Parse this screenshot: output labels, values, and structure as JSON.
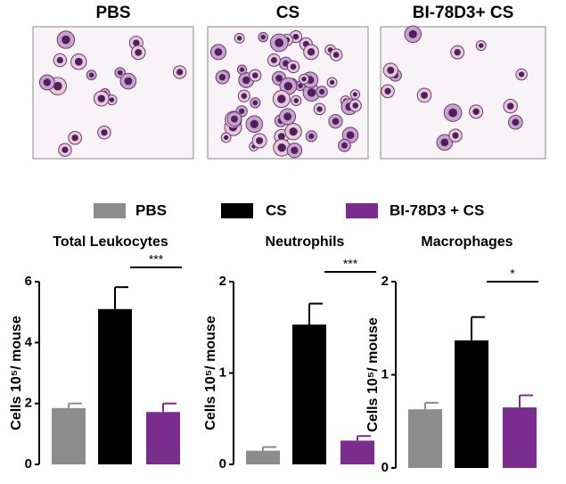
{
  "images": [
    {
      "label": "PBS"
    },
    {
      "label": "CS"
    },
    {
      "label": "BI-78D3+ CS"
    }
  ],
  "legend": [
    {
      "name": "PBS",
      "color": "#8c8c8c"
    },
    {
      "name": "CS",
      "color": "#000000"
    },
    {
      "name": "BI-78D3 + CS",
      "color": "#7b2d8e"
    }
  ],
  "chart_data": [
    {
      "type": "bar",
      "title": "Total Leukocytes",
      "y_label": "Cells 10⁵/ mouse",
      "values": [
        1.85,
        5.1,
        1.72
      ],
      "errors": [
        0.15,
        0.72,
        0.28
      ],
      "ylim": [
        0,
        6
      ],
      "yticks": [
        0,
        2,
        4,
        6
      ],
      "significance": "***"
    },
    {
      "type": "bar",
      "title": "Neutrophils",
      "y_label": "Cells 10⁵/ mouse",
      "values": [
        0.15,
        1.53,
        0.26
      ],
      "errors": [
        0.04,
        0.23,
        0.05
      ],
      "ylim": [
        0,
        2
      ],
      "yticks": [
        0,
        1,
        2
      ],
      "significance": "***"
    },
    {
      "type": "bar",
      "title": "Macrophages",
      "y_label": "Cells 10⁵/ mouse",
      "values": [
        0.63,
        1.37,
        0.65
      ],
      "errors": [
        0.07,
        0.25,
        0.13
      ],
      "ylim": [
        0,
        2
      ],
      "yticks": [
        0,
        1,
        2
      ],
      "significance": "*"
    }
  ]
}
